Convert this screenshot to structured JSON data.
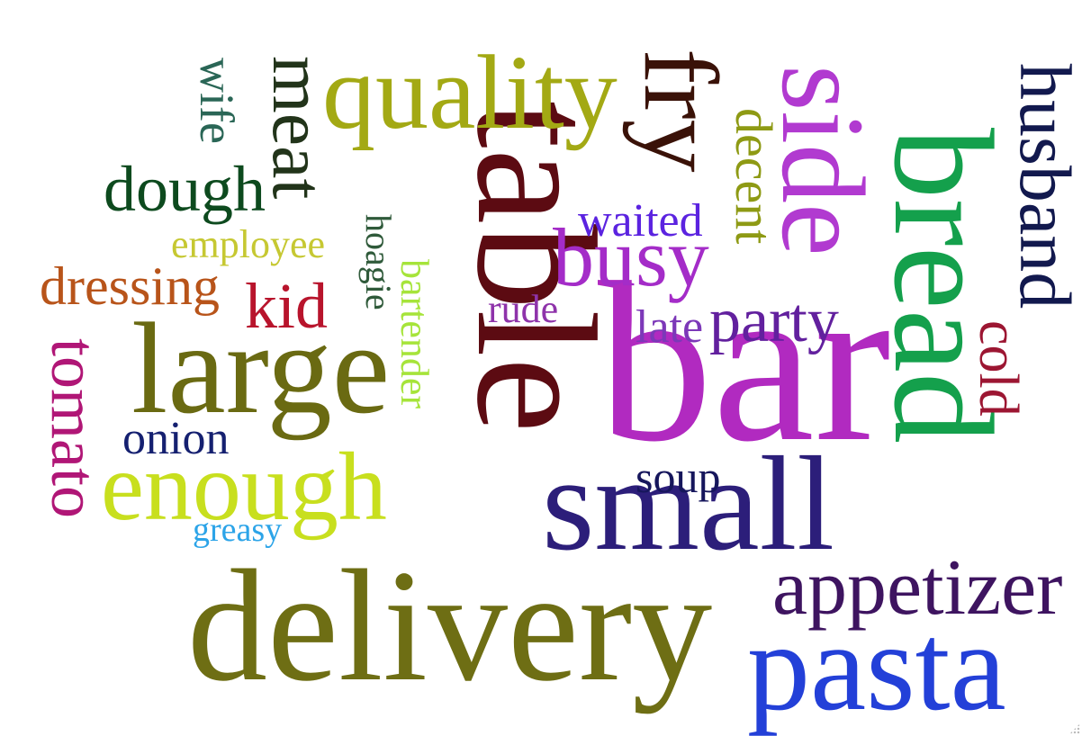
{
  "word_cloud": {
    "words": [
      {
        "id": "table",
        "text": "table",
        "color": "#5c0b12"
      },
      {
        "id": "bar",
        "text": "bar",
        "color": "#b12ac0"
      },
      {
        "id": "delivery",
        "text": "delivery",
        "color": "#6e6e14"
      },
      {
        "id": "small",
        "text": "small",
        "color": "#2c1e7a"
      },
      {
        "id": "pasta",
        "text": "pasta",
        "color": "#2340d8"
      },
      {
        "id": "bread",
        "text": "bread",
        "color": "#14a04c"
      },
      {
        "id": "large",
        "text": "large",
        "color": "#6a6a12"
      },
      {
        "id": "enough",
        "text": "enough",
        "color": "#c8df1e"
      },
      {
        "id": "quality",
        "text": "quality",
        "color": "#a3a914"
      },
      {
        "id": "side",
        "text": "side",
        "color": "#b13ad0"
      },
      {
        "id": "fry",
        "text": "fry",
        "color": "#3a1208"
      },
      {
        "id": "appetizer",
        "text": "appetizer",
        "color": "#3e1460"
      },
      {
        "id": "busy",
        "text": "busy",
        "color": "#a42cc8"
      },
      {
        "id": "husband",
        "text": "husband",
        "color": "#12194e"
      },
      {
        "id": "meat",
        "text": "meat",
        "color": "#22341a"
      },
      {
        "id": "dough",
        "text": "dough",
        "color": "#0d4a1e"
      },
      {
        "id": "decent",
        "text": "decent",
        "color": "#8e9a14"
      },
      {
        "id": "kid",
        "text": "kid",
        "color": "#b8142c"
      },
      {
        "id": "tomato",
        "text": "tomato",
        "color": "#b01676"
      },
      {
        "id": "dressing",
        "text": "dressing",
        "color": "#b8541a"
      },
      {
        "id": "party",
        "text": "party",
        "color": "#62209e"
      },
      {
        "id": "cold",
        "text": "cold",
        "color": "#9c1632"
      },
      {
        "id": "onion",
        "text": "onion",
        "color": "#152070"
      },
      {
        "id": "waited",
        "text": "waited",
        "color": "#5b23e0"
      },
      {
        "id": "soup",
        "text": "soup",
        "color": "#16165c"
      },
      {
        "id": "late",
        "text": "late",
        "color": "#7c38b8"
      },
      {
        "id": "rude",
        "text": "rude",
        "color": "#8e33aa"
      },
      {
        "id": "employee",
        "text": "employee",
        "color": "#c6c832"
      },
      {
        "id": "wife",
        "text": "wife",
        "color": "#2a6656"
      },
      {
        "id": "hoagie",
        "text": "hoagie",
        "color": "#2f5a3a"
      },
      {
        "id": "bartender",
        "text": "bartender",
        "color": "#a6e43a"
      },
      {
        "id": "greasy",
        "text": "greasy",
        "color": "#2ca4e8"
      }
    ]
  }
}
